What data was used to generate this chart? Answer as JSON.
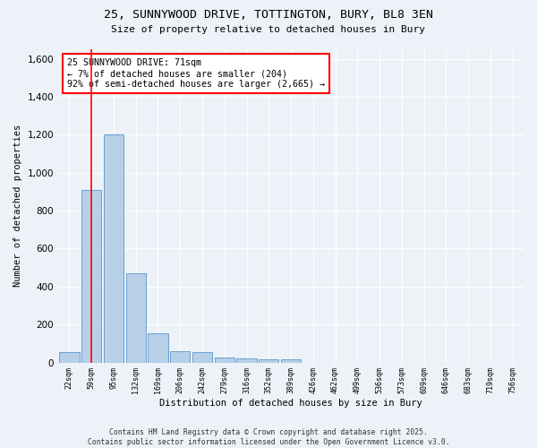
{
  "title_line1": "25, SUNNYWOOD DRIVE, TOTTINGTON, BURY, BL8 3EN",
  "title_line2": "Size of property relative to detached houses in Bury",
  "xlabel": "Distribution of detached houses by size in Bury",
  "ylabel": "Number of detached properties",
  "bar_labels": [
    "22sqm",
    "59sqm",
    "95sqm",
    "132sqm",
    "169sqm",
    "206sqm",
    "242sqm",
    "279sqm",
    "316sqm",
    "352sqm",
    "389sqm",
    "426sqm",
    "462sqm",
    "499sqm",
    "536sqm",
    "573sqm",
    "609sqm",
    "646sqm",
    "683sqm",
    "719sqm",
    "756sqm"
  ],
  "bar_values": [
    55,
    910,
    1200,
    470,
    155,
    60,
    55,
    28,
    20,
    15,
    15,
    0,
    0,
    0,
    0,
    0,
    0,
    0,
    0,
    0,
    0
  ],
  "bar_color": "#b8cfe8",
  "bar_edgecolor": "#6a9fd0",
  "ylim": [
    0,
    1650
  ],
  "yticks": [
    0,
    200,
    400,
    600,
    800,
    1000,
    1200,
    1400,
    1600
  ],
  "annotation_text": "25 SUNNYWOOD DRIVE: 71sqm\n← 7% of detached houses are smaller (204)\n92% of semi-detached houses are larger (2,665) →",
  "vline_bar_index": 1,
  "bg_color": "#edf2f9",
  "grid_color": "#ffffff",
  "footer": "Contains HM Land Registry data © Crown copyright and database right 2025.\nContains public sector information licensed under the Open Government Licence v3.0."
}
